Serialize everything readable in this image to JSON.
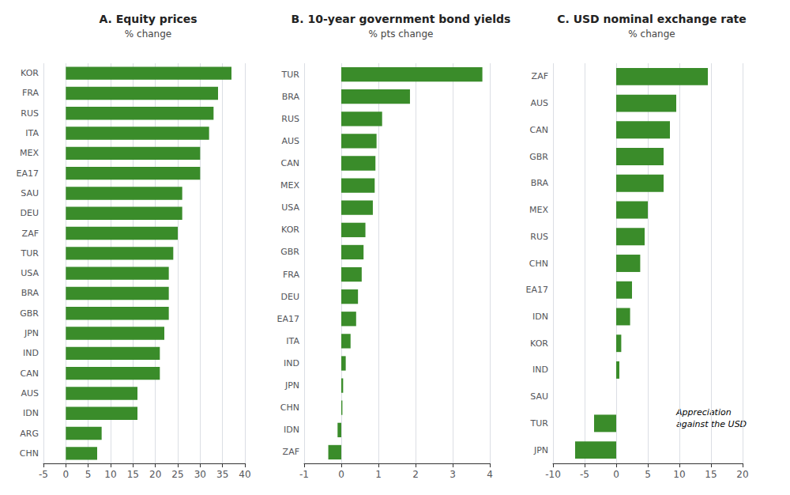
{
  "chart_data": [
    {
      "type": "bar",
      "orientation": "horizontal",
      "title": "A. Equity prices",
      "subtitle": "% change",
      "categories": [
        "KOR",
        "FRA",
        "RUS",
        "ITA",
        "MEX",
        "EA17",
        "SAU",
        "DEU",
        "ZAF",
        "TUR",
        "USA",
        "BRA",
        "GBR",
        "JPN",
        "IND",
        "CAN",
        "AUS",
        "IDN",
        "ARG",
        "CHN"
      ],
      "values": [
        37,
        34,
        33,
        32,
        30,
        30,
        26,
        26,
        25,
        24,
        23,
        23,
        23,
        22,
        21,
        21,
        16,
        16,
        8,
        7
      ],
      "color": "#3a8c2a",
      "xlim": [
        -5,
        40
      ],
      "xticks": [
        -5,
        0,
        5,
        10,
        15,
        20,
        25,
        30,
        35,
        40
      ],
      "grid": true
    },
    {
      "type": "bar",
      "orientation": "horizontal",
      "title": "B. 10-year government bond yields",
      "subtitle": "% pts change",
      "categories": [
        "TUR",
        "BRA",
        "RUS",
        "AUS",
        "CAN",
        "MEX",
        "USA",
        "KOR",
        "GBR",
        "FRA",
        "DEU",
        "EA17",
        "ITA",
        "IND",
        "JPN",
        "CHN",
        "IDN",
        "ZAF"
      ],
      "values": [
        3.8,
        1.85,
        1.1,
        0.95,
        0.92,
        0.9,
        0.85,
        0.65,
        0.6,
        0.55,
        0.45,
        0.4,
        0.25,
        0.12,
        0.05,
        0.03,
        -0.1,
        -0.35
      ],
      "color": "#3a8c2a",
      "xlim": [
        -1,
        4
      ],
      "xticks": [
        -1,
        0,
        1,
        2,
        3,
        4
      ],
      "grid": true
    },
    {
      "type": "bar",
      "orientation": "horizontal",
      "title": "C. USD nominal exchange rate",
      "subtitle": "% change",
      "categories": [
        "ZAF",
        "AUS",
        "CAN",
        "GBR",
        "BRA",
        "MEX",
        "RUS",
        "CHN",
        "EA17",
        "IDN",
        "KOR",
        "IND",
        "SAU",
        "TUR",
        "JPN"
      ],
      "values": [
        14.5,
        9.5,
        8.5,
        7.5,
        7.5,
        5.0,
        4.5,
        3.8,
        2.5,
        2.2,
        0.8,
        0.5,
        0.0,
        -3.5,
        -6.5
      ],
      "color": "#3a8c2a",
      "xlim": [
        -10,
        20
      ],
      "xticks": [
        -10,
        -5,
        0,
        5,
        10,
        15,
        20
      ],
      "grid": true,
      "annotation": "Appreciation\nagainst the USD"
    }
  ]
}
